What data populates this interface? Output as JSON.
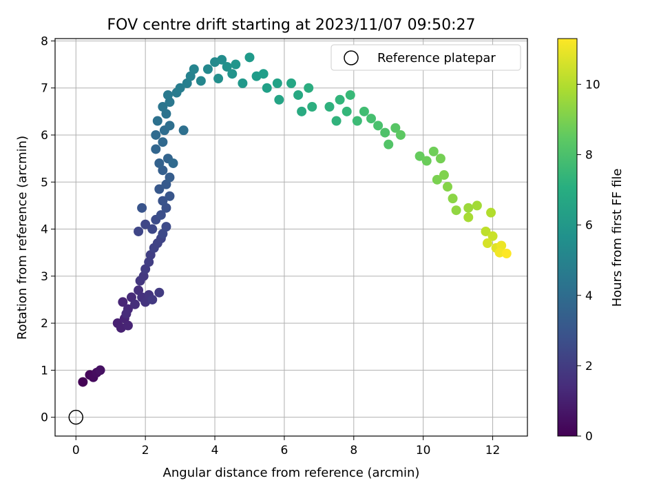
{
  "chart_data": {
    "type": "scatter",
    "title": "FOV centre drift starting at 2023/11/07 09:50:27",
    "xlabel": "Angular distance from reference (arcmin)",
    "ylabel": "Rotation from reference (arcmin)",
    "xlim": [
      -0.6,
      13.0
    ],
    "ylim": [
      -0.4,
      8.05
    ],
    "xticks": [
      0,
      2,
      4,
      6,
      8,
      10,
      12
    ],
    "yticks": [
      0,
      1,
      2,
      3,
      4,
      5,
      6,
      7,
      8
    ],
    "grid": true,
    "legend": {
      "position": "upper-right",
      "entries": [
        "Reference platepar"
      ]
    },
    "reference_point": {
      "x": 0,
      "y": 0
    },
    "colorbar": {
      "label": "Hours from first FF file",
      "colormap": "viridis",
      "min": 0,
      "max": 11.3,
      "ticks": [
        0,
        2,
        4,
        6,
        8,
        10
      ]
    },
    "series": [
      {
        "columns": [
          "x",
          "y",
          "hours"
        ],
        "points": [
          [
            0.2,
            0.75,
            0.05
          ],
          [
            0.4,
            0.9,
            0.2
          ],
          [
            0.5,
            0.85,
            0.3
          ],
          [
            0.6,
            0.95,
            0.4
          ],
          [
            0.7,
            1.0,
            0.5
          ],
          [
            1.2,
            2.0,
            1.0
          ],
          [
            1.3,
            1.9,
            1.05
          ],
          [
            1.4,
            2.1,
            1.1
          ],
          [
            1.5,
            1.95,
            1.15
          ],
          [
            1.35,
            2.45,
            1.2
          ],
          [
            1.5,
            2.3,
            1.3
          ],
          [
            1.6,
            2.55,
            1.35
          ],
          [
            1.45,
            2.2,
            1.4
          ],
          [
            1.7,
            2.4,
            1.5
          ],
          [
            1.8,
            2.7,
            1.55
          ],
          [
            1.9,
            2.55,
            1.6
          ],
          [
            2.0,
            2.45,
            1.7
          ],
          [
            2.1,
            2.6,
            1.75
          ],
          [
            1.85,
            2.9,
            1.8
          ],
          [
            1.95,
            3.0,
            1.85
          ],
          [
            2.2,
            2.5,
            1.9
          ],
          [
            2.4,
            2.65,
            1.95
          ],
          [
            2.0,
            3.15,
            2.0
          ],
          [
            2.1,
            3.3,
            2.05
          ],
          [
            2.15,
            3.45,
            2.1
          ],
          [
            2.25,
            3.6,
            2.2
          ],
          [
            2.35,
            3.7,
            2.25
          ],
          [
            2.45,
            3.8,
            2.3
          ],
          [
            1.8,
            3.95,
            2.35
          ],
          [
            2.0,
            4.1,
            2.4
          ],
          [
            2.2,
            4.0,
            2.45
          ],
          [
            2.5,
            3.9,
            2.5
          ],
          [
            2.6,
            4.05,
            2.55
          ],
          [
            2.3,
            4.2,
            2.6
          ],
          [
            2.45,
            4.3,
            2.7
          ],
          [
            2.6,
            4.45,
            2.8
          ],
          [
            2.5,
            4.6,
            2.9
          ],
          [
            1.9,
            4.45,
            2.95
          ],
          [
            2.7,
            4.7,
            3.0
          ],
          [
            2.4,
            4.85,
            3.1
          ],
          [
            2.6,
            4.95,
            3.2
          ],
          [
            2.7,
            5.1,
            3.3
          ],
          [
            2.5,
            5.25,
            3.4
          ],
          [
            2.4,
            5.4,
            3.5
          ],
          [
            2.65,
            5.5,
            3.6
          ],
          [
            2.3,
            5.7,
            3.7
          ],
          [
            2.5,
            5.85,
            3.8
          ],
          [
            2.8,
            5.4,
            3.85
          ],
          [
            2.3,
            6.0,
            3.9
          ],
          [
            2.55,
            6.1,
            4.0
          ],
          [
            2.7,
            6.2,
            4.1
          ],
          [
            3.1,
            6.1,
            4.15
          ],
          [
            2.35,
            6.3,
            4.2
          ],
          [
            2.6,
            6.45,
            4.3
          ],
          [
            2.5,
            6.6,
            4.4
          ],
          [
            2.7,
            6.7,
            4.5
          ],
          [
            2.65,
            6.85,
            4.6
          ],
          [
            2.9,
            6.9,
            4.7
          ],
          [
            3.0,
            7.0,
            4.8
          ],
          [
            3.2,
            7.1,
            4.9
          ],
          [
            3.3,
            7.25,
            5.0
          ],
          [
            3.4,
            7.4,
            5.1
          ],
          [
            3.6,
            7.15,
            5.2
          ],
          [
            3.8,
            7.4,
            5.3
          ],
          [
            4.0,
            7.55,
            5.4
          ],
          [
            4.2,
            7.6,
            5.5
          ],
          [
            4.1,
            7.2,
            5.6
          ],
          [
            4.35,
            7.45,
            5.7
          ],
          [
            4.5,
            7.3,
            5.8
          ],
          [
            4.6,
            7.5,
            5.9
          ],
          [
            4.8,
            7.1,
            6.0
          ],
          [
            5.0,
            7.65,
            6.1
          ],
          [
            5.2,
            7.25,
            6.2
          ],
          [
            5.4,
            7.3,
            6.3
          ],
          [
            5.5,
            7.0,
            6.4
          ],
          [
            5.8,
            7.1,
            6.5
          ],
          [
            5.85,
            6.75,
            6.6
          ],
          [
            6.2,
            7.1,
            6.7
          ],
          [
            6.4,
            6.85,
            6.8
          ],
          [
            6.5,
            6.5,
            6.9
          ],
          [
            6.7,
            7.0,
            7.0
          ],
          [
            6.8,
            6.6,
            7.1
          ],
          [
            7.3,
            6.6,
            7.2
          ],
          [
            7.5,
            6.3,
            7.3
          ],
          [
            7.6,
            6.75,
            7.4
          ],
          [
            7.8,
            6.5,
            7.5
          ],
          [
            7.9,
            6.85,
            7.6
          ],
          [
            8.1,
            6.3,
            7.7
          ],
          [
            8.3,
            6.5,
            7.8
          ],
          [
            8.5,
            6.35,
            7.9
          ],
          [
            8.7,
            6.2,
            8.0
          ],
          [
            8.9,
            6.05,
            8.1
          ],
          [
            9.0,
            5.8,
            8.2
          ],
          [
            9.2,
            6.15,
            8.3
          ],
          [
            9.35,
            6.0,
            8.4
          ],
          [
            9.9,
            5.55,
            8.6
          ],
          [
            10.1,
            5.45,
            8.7
          ],
          [
            10.3,
            5.65,
            8.8
          ],
          [
            10.5,
            5.5,
            8.9
          ],
          [
            10.4,
            5.05,
            9.0
          ],
          [
            10.6,
            5.15,
            9.1
          ],
          [
            10.7,
            4.9,
            9.2
          ],
          [
            10.85,
            4.65,
            9.3
          ],
          [
            10.95,
            4.4,
            9.4
          ],
          [
            11.3,
            4.45,
            9.6
          ],
          [
            11.55,
            4.5,
            9.7
          ],
          [
            11.3,
            4.25,
            9.8
          ],
          [
            11.95,
            4.35,
            10.0
          ],
          [
            11.8,
            3.95,
            10.2
          ],
          [
            12.0,
            3.85,
            10.4
          ],
          [
            11.85,
            3.7,
            10.6
          ],
          [
            12.1,
            3.6,
            10.8
          ],
          [
            12.25,
            3.65,
            11.0
          ],
          [
            12.2,
            3.5,
            11.1
          ],
          [
            12.4,
            3.48,
            11.3
          ]
        ]
      }
    ]
  }
}
